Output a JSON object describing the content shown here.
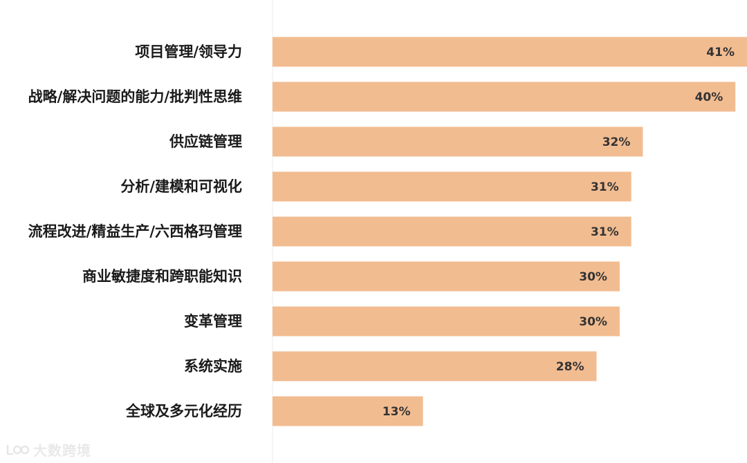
{
  "chart_data": {
    "type": "bar",
    "orientation": "horizontal",
    "categories": [
      "项目管理/领导力",
      "战略/解决问题的能力/批判性思维",
      "供应链管理",
      "分析/建模和可视化",
      "流程改进/精益生产/六西格玛管理",
      "商业敏捷度和跨职能知识",
      "变革管理",
      "系统实施",
      "全球及多元化经历"
    ],
    "values": [
      41,
      40,
      32,
      31,
      31,
      30,
      30,
      28,
      13
    ],
    "value_labels": [
      "41%",
      "40%",
      "32%",
      "31%",
      "31%",
      "30%",
      "30%",
      "28%",
      "13%"
    ],
    "unit": "%",
    "xlim": [
      0,
      41
    ],
    "grid": false,
    "legend": "none",
    "bar_color": "#f2bc91",
    "axis_line_color": "#eeeeee"
  },
  "watermark": {
    "text": "大数跨境"
  }
}
